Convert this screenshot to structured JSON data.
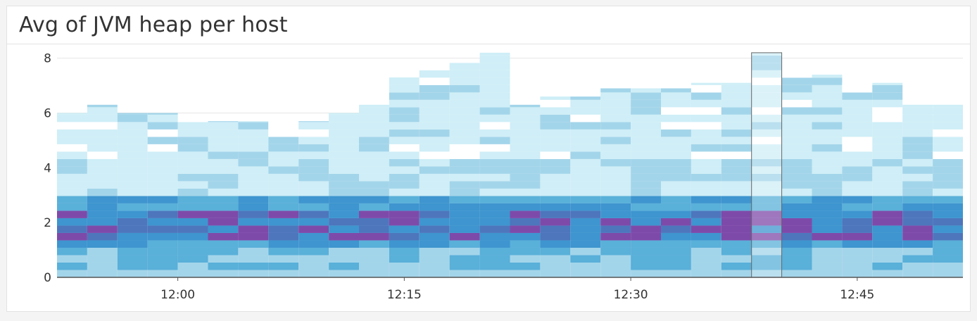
{
  "widget": {
    "title": "Avg of JVM heap per host"
  },
  "chart_data": {
    "type": "heatmap",
    "title": "Avg of JVM heap per host",
    "xlabel": "",
    "ylabel": "",
    "x_time_range": [
      "11:52",
      "12:52"
    ],
    "x_ticks": [
      "12:00",
      "12:15",
      "12:30",
      "12:45"
    ],
    "y_ticks": [
      0,
      2,
      4,
      6,
      8
    ],
    "ylim": [
      0,
      8.3
    ],
    "bucket_minutes": 2,
    "bucket_size": 0.27,
    "grid": true,
    "color_scale": [
      "#ffffff",
      "#cfeef7",
      "#a3d5ea",
      "#59b0d9",
      "#3e95cf",
      "#4d76bd",
      "#7e4aaa"
    ],
    "columns": [
      {
        "time": "11:52",
        "y_top": 6.0
      },
      {
        "time": "11:54",
        "y_top": 6.3
      },
      {
        "time": "11:56",
        "y_top": 6.0
      },
      {
        "time": "11:58",
        "y_top": 6.0
      },
      {
        "time": "12:00",
        "y_top": 5.7
      },
      {
        "time": "12:02",
        "y_top": 5.7
      },
      {
        "time": "12:04",
        "y_top": 5.7
      },
      {
        "time": "12:06",
        "y_top": 5.7
      },
      {
        "time": "12:08",
        "y_top": 5.7
      },
      {
        "time": "12:10",
        "y_top": 6.0
      },
      {
        "time": "12:12",
        "y_top": 6.3
      },
      {
        "time": "12:14",
        "y_top": 7.3
      },
      {
        "time": "12:16",
        "y_top": 7.6
      },
      {
        "time": "12:18",
        "y_top": 7.9
      },
      {
        "time": "12:20",
        "y_top": 8.2
      },
      {
        "time": "12:22",
        "y_top": 6.3
      },
      {
        "time": "12:24",
        "y_top": 6.6
      },
      {
        "time": "12:26",
        "y_top": 6.6
      },
      {
        "time": "12:28",
        "y_top": 6.9
      },
      {
        "time": "12:30",
        "y_top": 6.9
      },
      {
        "time": "12:32",
        "y_top": 6.9
      },
      {
        "time": "12:34",
        "y_top": 7.1
      },
      {
        "time": "12:36",
        "y_top": 7.1
      },
      {
        "time": "12:38",
        "y_top": 8.2
      },
      {
        "time": "12:40",
        "y_top": 7.4
      },
      {
        "time": "12:42",
        "y_top": 7.4
      },
      {
        "time": "12:44",
        "y_top": 7.1
      },
      {
        "time": "12:46",
        "y_top": 7.1
      },
      {
        "time": "12:48",
        "y_top": 6.3
      },
      {
        "time": "12:50",
        "y_top": 6.3
      }
    ],
    "highlight_column": "12:38"
  }
}
